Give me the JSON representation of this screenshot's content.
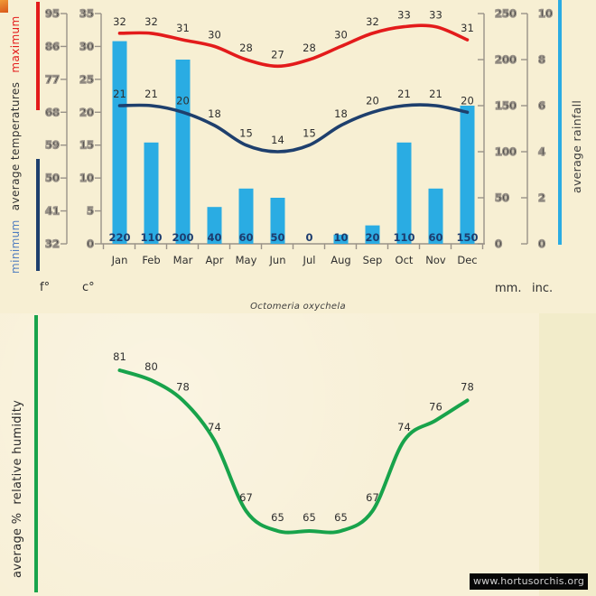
{
  "page": {
    "species_title": "Octomeria oxychela",
    "watermark": "www.hortusorchis.org"
  },
  "legends": {
    "temps": [
      "minimum",
      "average temperatures",
      "maximum"
    ],
    "rainfall": "average rainfall",
    "humidity": [
      "average %",
      "relative humidity"
    ]
  },
  "units": {
    "fahrenheit": "f°",
    "celsius": "c°",
    "millimeters": "mm.",
    "inches": "inc."
  },
  "colors": {
    "max_temp": "#e31b1b",
    "min_temp": "#1e3f6d",
    "rain_bar": "#2aace3",
    "humidity": "#18a34b",
    "axis": "#999288",
    "bar_label": "#1d3c6e",
    "label_text": "#2f2f2f"
  },
  "chart_data": [
    {
      "type": "line",
      "subtype": "climate-combo-temperature-rainfall",
      "categories": [
        "Jan",
        "Feb",
        "Mar",
        "Apr",
        "May",
        "Jun",
        "Jul",
        "Aug",
        "Sep",
        "Oct",
        "Nov",
        "Dec"
      ],
      "series": [
        {
          "name": "maximum temperature",
          "kind": "line",
          "unit": "c",
          "color_key": "max_temp",
          "values": [
            32,
            32,
            31,
            30,
            28,
            27,
            28,
            30,
            32,
            33,
            33,
            31
          ]
        },
        {
          "name": "minimum temperature",
          "kind": "line",
          "unit": "c",
          "color_key": "min_temp",
          "values": [
            21,
            21,
            20,
            18,
            15,
            14,
            15,
            18,
            20,
            21,
            21,
            20
          ]
        },
        {
          "name": "average rainfall",
          "kind": "bar",
          "unit": "mm",
          "color_key": "rain_bar",
          "values": [
            220,
            110,
            200,
            40,
            60,
            50,
            0,
            10,
            20,
            110,
            60,
            150
          ]
        }
      ],
      "axis_ticks": {
        "f": [
          95,
          86,
          77,
          68,
          59,
          50,
          41,
          32
        ],
        "c": [
          35,
          30,
          25,
          20,
          15,
          10,
          5,
          0
        ],
        "mm": [
          250,
          200,
          150,
          100,
          50,
          0
        ],
        "inc": [
          10,
          8,
          6,
          4,
          2,
          0
        ]
      },
      "ylim_c": [
        0,
        35
      ],
      "ylim_mm": [
        0,
        250
      ],
      "grid": false,
      "legend_position": "left-and-right-vertical"
    },
    {
      "type": "line",
      "title": "Octomeria oxychela",
      "categories": [
        "Jan",
        "Feb",
        "Mar",
        "Apr",
        "May",
        "Jun",
        "Jul",
        "Aug",
        "Sep",
        "Oct",
        "Nov",
        "Dec"
      ],
      "series": [
        {
          "name": "average % relative humidity",
          "color_key": "humidity",
          "values": [
            81,
            80,
            78,
            74,
            67,
            65,
            65,
            65,
            67,
            74,
            76,
            78
          ]
        }
      ],
      "ylim": [
        60,
        85
      ],
      "grid": false,
      "axes_visible": false
    }
  ]
}
